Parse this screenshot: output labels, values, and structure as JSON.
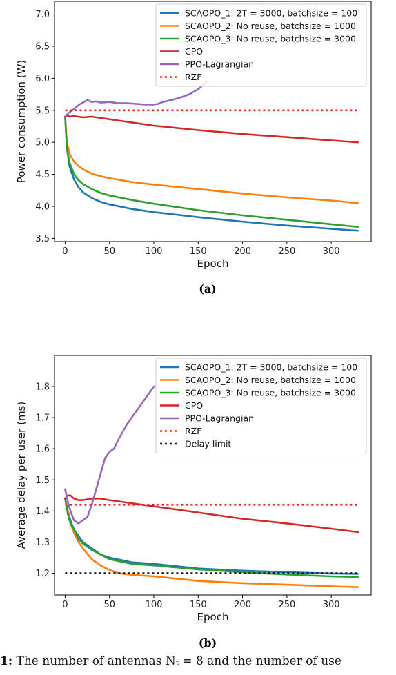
{
  "chart_data": [
    {
      "type": "line",
      "panel_label": "(a)",
      "xlabel": "Epoch",
      "ylabel": "Power consumption (W)",
      "xlim": [
        -12,
        345
      ],
      "ylim": [
        3.45,
        7.2
      ],
      "xticks": [
        0,
        50,
        100,
        150,
        200,
        250,
        300
      ],
      "yticks": [
        3.5,
        4.0,
        4.5,
        5.0,
        5.5,
        6.0,
        6.5,
        7.0
      ],
      "ytick_labels": [
        "3.5",
        "4.0",
        "4.5",
        "5.0",
        "5.5",
        "6.0",
        "6.5",
        "7.0"
      ],
      "legend": "top-right",
      "series": [
        {
          "name": "SCAOPO_1: 2T = 3000, batchsize = 100",
          "color": "#1f77b4",
          "style": "solid",
          "x": [
            0,
            2,
            5,
            10,
            15,
            20,
            30,
            40,
            50,
            75,
            100,
            150,
            200,
            250,
            300,
            330
          ],
          "y": [
            5.4,
            4.9,
            4.62,
            4.42,
            4.3,
            4.22,
            4.13,
            4.07,
            4.03,
            3.96,
            3.91,
            3.83,
            3.76,
            3.7,
            3.65,
            3.62
          ]
        },
        {
          "name": "SCAOPO_2: No reuse, batchsize = 1000",
          "color": "#ff7f0e",
          "style": "solid",
          "x": [
            0,
            2,
            5,
            10,
            15,
            20,
            30,
            40,
            50,
            75,
            100,
            150,
            200,
            250,
            300,
            330
          ],
          "y": [
            5.4,
            5.0,
            4.82,
            4.7,
            4.63,
            4.58,
            4.51,
            4.47,
            4.44,
            4.38,
            4.34,
            4.27,
            4.2,
            4.14,
            4.09,
            4.05
          ]
        },
        {
          "name": "SCAOPO_3: No reuse, batchsize = 3000",
          "color": "#2ca02c",
          "style": "solid",
          "x": [
            0,
            2,
            5,
            10,
            15,
            20,
            30,
            40,
            50,
            75,
            100,
            150,
            200,
            250,
            300,
            330
          ],
          "y": [
            5.4,
            4.9,
            4.68,
            4.5,
            4.41,
            4.35,
            4.27,
            4.21,
            4.17,
            4.1,
            4.04,
            3.94,
            3.86,
            3.79,
            3.72,
            3.68
          ]
        },
        {
          "name": "CPO",
          "color": "#d62728",
          "style": "solid",
          "x": [
            0,
            3,
            5,
            10,
            20,
            30,
            40,
            60,
            80,
            100,
            150,
            200,
            250,
            300,
            330
          ],
          "y": [
            5.4,
            5.42,
            5.4,
            5.41,
            5.39,
            5.4,
            5.38,
            5.34,
            5.3,
            5.26,
            5.19,
            5.13,
            5.08,
            5.03,
            5.0
          ]
        },
        {
          "name": "PPO-Lagrangian",
          "color": "#9467bd",
          "style": "solid",
          "x": [
            0,
            3,
            6,
            10,
            15,
            20,
            25,
            30,
            35,
            40,
            50,
            60,
            70,
            80,
            90,
            100,
            105,
            110,
            120,
            130,
            140,
            150,
            160
          ],
          "y": [
            5.4,
            5.45,
            5.48,
            5.52,
            5.58,
            5.62,
            5.66,
            5.63,
            5.64,
            5.62,
            5.63,
            5.61,
            5.61,
            5.6,
            5.59,
            5.59,
            5.6,
            5.63,
            5.66,
            5.7,
            5.75,
            5.83,
            5.95
          ]
        },
        {
          "name": "RZF",
          "color": "#e8221f",
          "style": "dotted",
          "x": [
            0,
            330
          ],
          "y": [
            5.5,
            5.5
          ]
        }
      ]
    },
    {
      "type": "line",
      "panel_label": "(b)",
      "xlabel": "Epoch",
      "ylabel": "Average delay per user (ms)",
      "xlim": [
        -12,
        345
      ],
      "ylim": [
        1.13,
        1.9
      ],
      "xticks": [
        0,
        50,
        100,
        150,
        200,
        250,
        300
      ],
      "yticks": [
        1.2,
        1.3,
        1.4,
        1.5,
        1.6,
        1.7,
        1.8
      ],
      "ytick_labels": [
        "1.2",
        "1.3",
        "1.4",
        "1.5",
        "1.6",
        "1.7",
        "1.8"
      ],
      "legend": "top-right",
      "series": [
        {
          "name": "SCAOPO_1: 2T = 3000, batchsize = 100",
          "color": "#1f77b4",
          "style": "solid",
          "x": [
            0,
            3,
            6,
            10,
            15,
            20,
            30,
            40,
            50,
            75,
            100,
            150,
            200,
            250,
            300,
            330
          ],
          "y": [
            1.44,
            1.4,
            1.37,
            1.34,
            1.32,
            1.3,
            1.28,
            1.26,
            1.25,
            1.235,
            1.23,
            1.215,
            1.208,
            1.203,
            1.199,
            1.198
          ]
        },
        {
          "name": "SCAOPO_2: No reuse, batchsize = 1000",
          "color": "#ff7f0e",
          "style": "solid",
          "x": [
            0,
            3,
            6,
            10,
            15,
            20,
            30,
            40,
            50,
            60,
            75,
            100,
            150,
            200,
            250,
            300,
            330
          ],
          "y": [
            1.44,
            1.4,
            1.36,
            1.33,
            1.3,
            1.28,
            1.245,
            1.225,
            1.21,
            1.2,
            1.195,
            1.19,
            1.175,
            1.168,
            1.163,
            1.158,
            1.155
          ]
        },
        {
          "name": "SCAOPO_3: No reuse, batchsize = 3000",
          "color": "#2ca02c",
          "style": "solid",
          "x": [
            0,
            3,
            6,
            10,
            15,
            20,
            30,
            40,
            50,
            75,
            100,
            150,
            200,
            250,
            300,
            330
          ],
          "y": [
            1.44,
            1.39,
            1.36,
            1.34,
            1.31,
            1.295,
            1.275,
            1.26,
            1.245,
            1.23,
            1.225,
            1.212,
            1.203,
            1.196,
            1.19,
            1.188
          ]
        },
        {
          "name": "CPO",
          "color": "#d62728",
          "style": "solid",
          "x": [
            0,
            3,
            6,
            10,
            15,
            20,
            30,
            40,
            50,
            75,
            100,
            150,
            200,
            250,
            300,
            330
          ],
          "y": [
            1.44,
            1.45,
            1.45,
            1.44,
            1.435,
            1.435,
            1.44,
            1.44,
            1.435,
            1.425,
            1.415,
            1.395,
            1.375,
            1.36,
            1.343,
            1.332
          ]
        },
        {
          "name": "PPO-Lagrangian",
          "color": "#9467bd",
          "style": "solid",
          "x": [
            0,
            3,
            6,
            10,
            15,
            20,
            25,
            30,
            35,
            40,
            45,
            50,
            55,
            60,
            70,
            80,
            90,
            100
          ],
          "y": [
            1.47,
            1.43,
            1.4,
            1.37,
            1.36,
            1.37,
            1.38,
            1.42,
            1.47,
            1.52,
            1.57,
            1.59,
            1.6,
            1.63,
            1.68,
            1.72,
            1.76,
            1.8
          ]
        },
        {
          "name": "RZF",
          "color": "#e8221f",
          "style": "dotted",
          "x": [
            0,
            330
          ],
          "y": [
            1.42,
            1.42
          ]
        },
        {
          "name": "Delay limit",
          "color": "#111111",
          "style": "dotted",
          "x": [
            0,
            330
          ],
          "y": [
            1.2,
            1.2
          ]
        }
      ]
    }
  ],
  "caption": {
    "prefix": "1:",
    "text": " The number of antennas Nₜ = 8 and the number of use"
  }
}
